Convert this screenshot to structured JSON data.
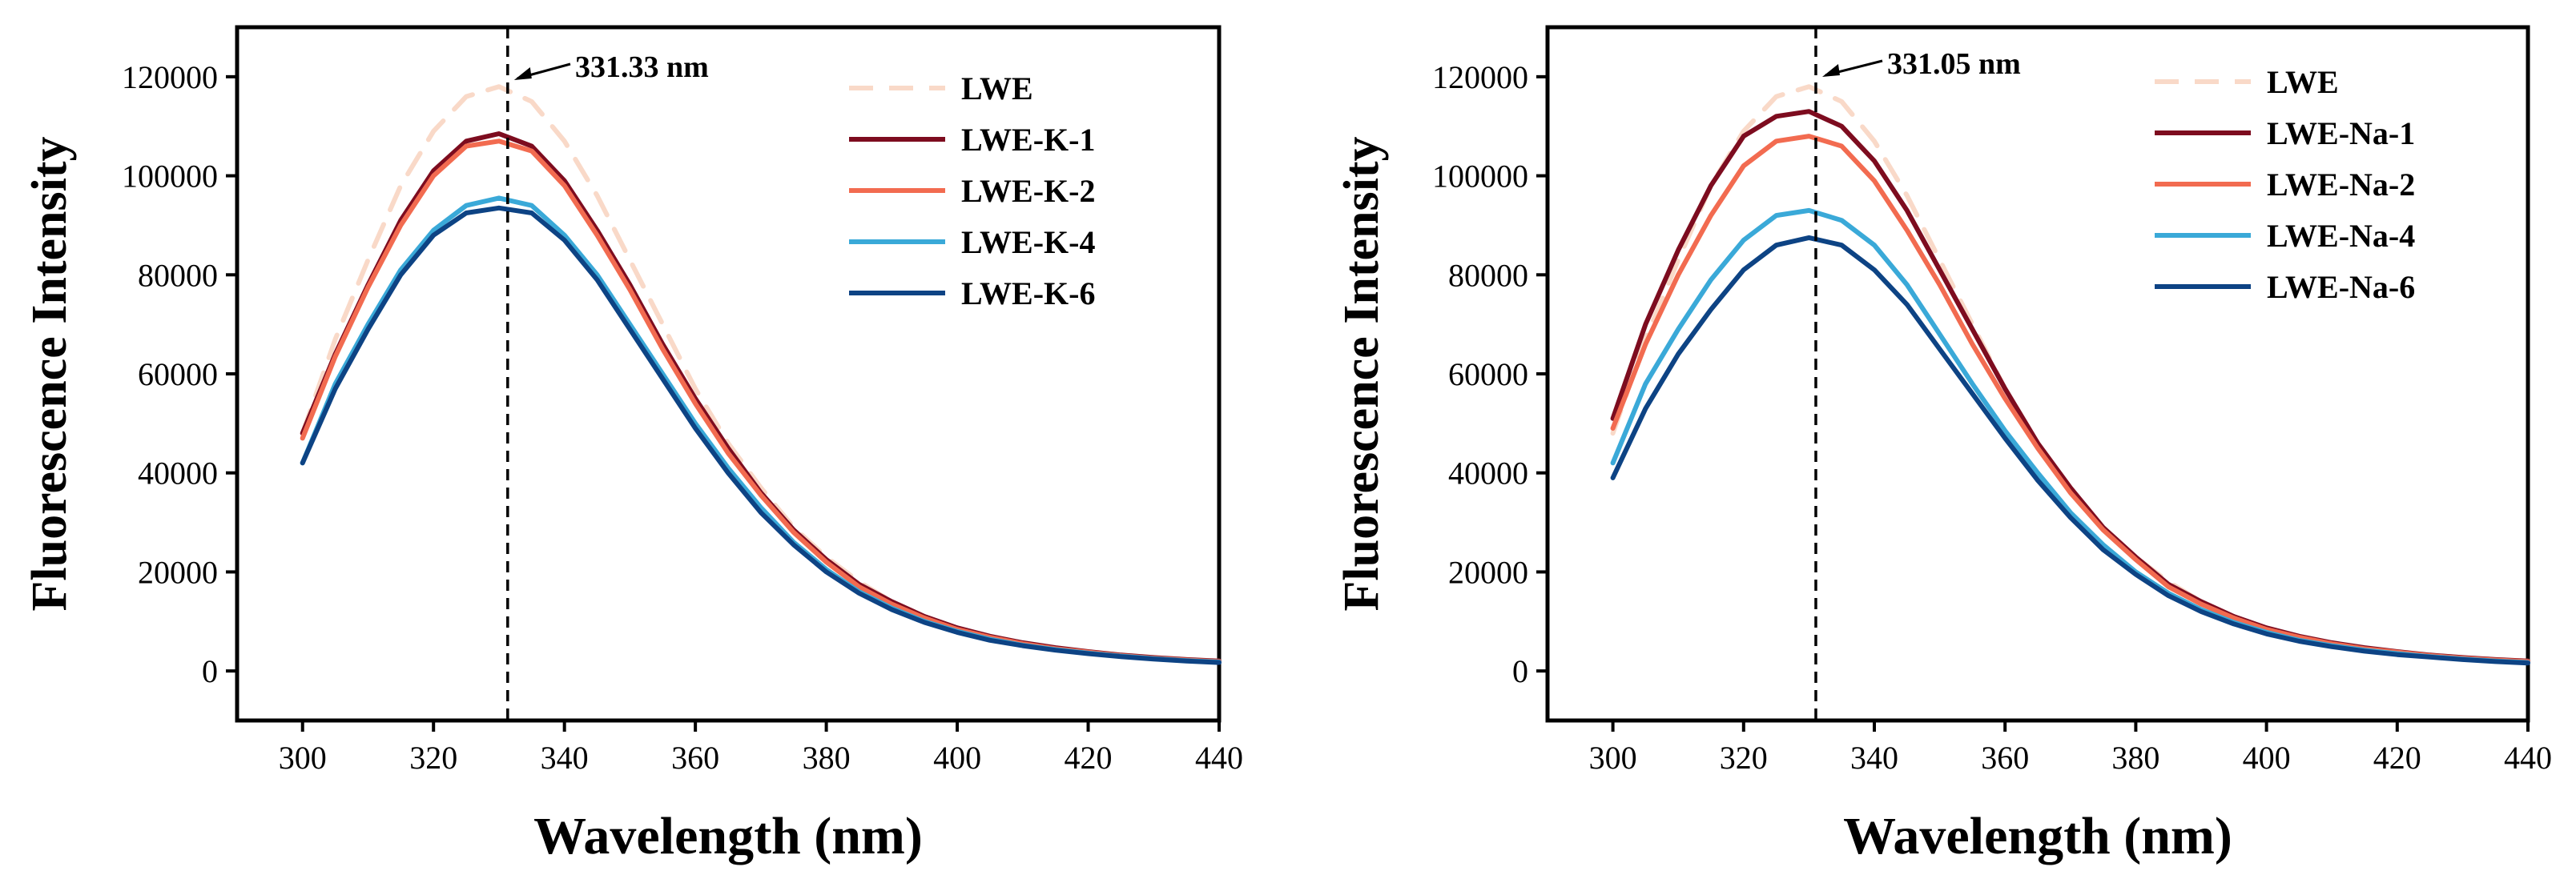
{
  "chart_data": [
    {
      "type": "line",
      "xlabel": "Wavelength (nm)",
      "ylabel": "Fluorescence Intensity",
      "xlim": [
        290,
        440
      ],
      "ylim": [
        -10000,
        130000
      ],
      "xticks": [
        "300",
        "320",
        "340",
        "360",
        "380",
        "400",
        "420",
        "440"
      ],
      "yticks": [
        "0",
        "20000",
        "40000",
        "60000",
        "80000",
        "100000",
        "120000"
      ],
      "legend_position": "top-right",
      "grid": false,
      "x": [
        300,
        305,
        310,
        315,
        320,
        325,
        330,
        335,
        340,
        345,
        350,
        355,
        360,
        365,
        370,
        375,
        380,
        385,
        390,
        395,
        400,
        405,
        410,
        415,
        420,
        425,
        430,
        435,
        440
      ],
      "series": [
        {
          "name": "LWE",
          "color": "#f9d9c8",
          "dash": true,
          "values": [
            48000,
            67000,
            83000,
            98000,
            109000,
            116000,
            118000,
            115000,
            107000,
            96000,
            83000,
            70000,
            57000,
            46000,
            37000,
            29000,
            23000,
            18000,
            14000,
            11000,
            8600,
            6900,
            5600,
            4600,
            3800,
            3200,
            2700,
            2300,
            2000
          ]
        },
        {
          "name": "LWE-K-1",
          "color": "#7d0c1f",
          "dash": false,
          "values": [
            48000,
            64000,
            78000,
            91000,
            101000,
            107000,
            108500,
            106000,
            99000,
            89000,
            78000,
            66000,
            55000,
            45000,
            36000,
            28500,
            22500,
            17500,
            14000,
            11000,
            8700,
            7000,
            5700,
            4700,
            3900,
            3200,
            2700,
            2300,
            2000
          ]
        },
        {
          "name": "LWE-K-2",
          "color": "#f26b50",
          "dash": false,
          "values": [
            47000,
            63500,
            77500,
            90000,
            100000,
            106000,
            107000,
            105000,
            98000,
            88000,
            77000,
            65000,
            54000,
            44000,
            35500,
            28000,
            22000,
            17000,
            13500,
            10700,
            8400,
            6800,
            5500,
            4500,
            3800,
            3100,
            2600,
            2200,
            1900
          ]
        },
        {
          "name": "LWE-K-4",
          "color": "#3aa9d8",
          "dash": false,
          "values": [
            42000,
            58000,
            70000,
            81000,
            89000,
            94000,
            95500,
            94000,
            88000,
            80000,
            70000,
            60000,
            50000,
            41000,
            33000,
            26000,
            20500,
            16000,
            12700,
            10000,
            8000,
            6400,
            5200,
            4300,
            3600,
            3000,
            2500,
            2100,
            1800
          ]
        },
        {
          "name": "LWE-K-6",
          "color": "#0d4384",
          "dash": false,
          "values": [
            42000,
            57000,
            69000,
            80000,
            88000,
            92500,
            93500,
            92500,
            87000,
            79000,
            69000,
            59000,
            49000,
            40000,
            32000,
            25500,
            20000,
            15700,
            12400,
            9800,
            7800,
            6200,
            5100,
            4200,
            3500,
            2900,
            2400,
            2000,
            1700
          ]
        }
      ],
      "annotation": {
        "x": 331.33,
        "label": "331.33 nm"
      }
    },
    {
      "type": "line",
      "xlabel": "Wavelength (nm)",
      "ylabel": "Fluorescence Intensity",
      "xlim": [
        290,
        440
      ],
      "ylim": [
        -10000,
        130000
      ],
      "xticks": [
        "300",
        "320",
        "340",
        "360",
        "380",
        "400",
        "420",
        "440"
      ],
      "yticks": [
        "0",
        "20000",
        "40000",
        "60000",
        "80000",
        "100000",
        "120000"
      ],
      "legend_position": "top-right",
      "grid": false,
      "x": [
        300,
        305,
        310,
        315,
        320,
        325,
        330,
        335,
        340,
        345,
        350,
        355,
        360,
        365,
        370,
        375,
        380,
        385,
        390,
        395,
        400,
        405,
        410,
        415,
        420,
        425,
        430,
        435,
        440
      ],
      "series": [
        {
          "name": "LWE",
          "color": "#f9d9c8",
          "dash": true,
          "values": [
            48000,
            67000,
            83000,
            98000,
            109000,
            116000,
            118000,
            115000,
            107000,
            96000,
            83000,
            70000,
            57000,
            46000,
            37000,
            29000,
            23000,
            18000,
            14000,
            11000,
            8600,
            6900,
            5600,
            4600,
            3800,
            3200,
            2700,
            2300,
            2000
          ]
        },
        {
          "name": "LWE-Na-1",
          "color": "#7d0c1f",
          "dash": false,
          "values": [
            51000,
            70000,
            85000,
            98000,
            108000,
            112000,
            113000,
            110000,
            103000,
            93000,
            81000,
            69000,
            57000,
            46000,
            37000,
            29000,
            23000,
            17500,
            14000,
            11000,
            8700,
            7000,
            5700,
            4700,
            3900,
            3200,
            2700,
            2300,
            2000
          ]
        },
        {
          "name": "LWE-Na-2",
          "color": "#f26b50",
          "dash": false,
          "values": [
            49000,
            66000,
            80000,
            92000,
            102000,
            107000,
            108000,
            106000,
            99000,
            89000,
            78000,
            66000,
            55000,
            45000,
            36000,
            28500,
            22500,
            17000,
            13500,
            10700,
            8400,
            6800,
            5500,
            4500,
            3800,
            3100,
            2600,
            2200,
            1900
          ]
        },
        {
          "name": "LWE-Na-4",
          "color": "#3aa9d8",
          "dash": false,
          "values": [
            42000,
            58000,
            69000,
            79000,
            87000,
            92000,
            93000,
            91000,
            86000,
            78000,
            68000,
            58000,
            48500,
            40000,
            32000,
            25500,
            20000,
            15700,
            12400,
            9800,
            7800,
            6200,
            5100,
            4200,
            3500,
            2900,
            2400,
            2000,
            1700
          ]
        },
        {
          "name": "LWE-Na-6",
          "color": "#0d4384",
          "dash": false,
          "values": [
            39000,
            53000,
            64000,
            73000,
            81000,
            86000,
            87500,
            86000,
            81000,
            74000,
            65000,
            56000,
            47000,
            38500,
            31000,
            24500,
            19500,
            15200,
            12000,
            9500,
            7500,
            6000,
            4900,
            4000,
            3300,
            2800,
            2300,
            1900,
            1600
          ]
        }
      ],
      "annotation": {
        "x": 331.05,
        "label": "331.05 nm"
      }
    }
  ]
}
